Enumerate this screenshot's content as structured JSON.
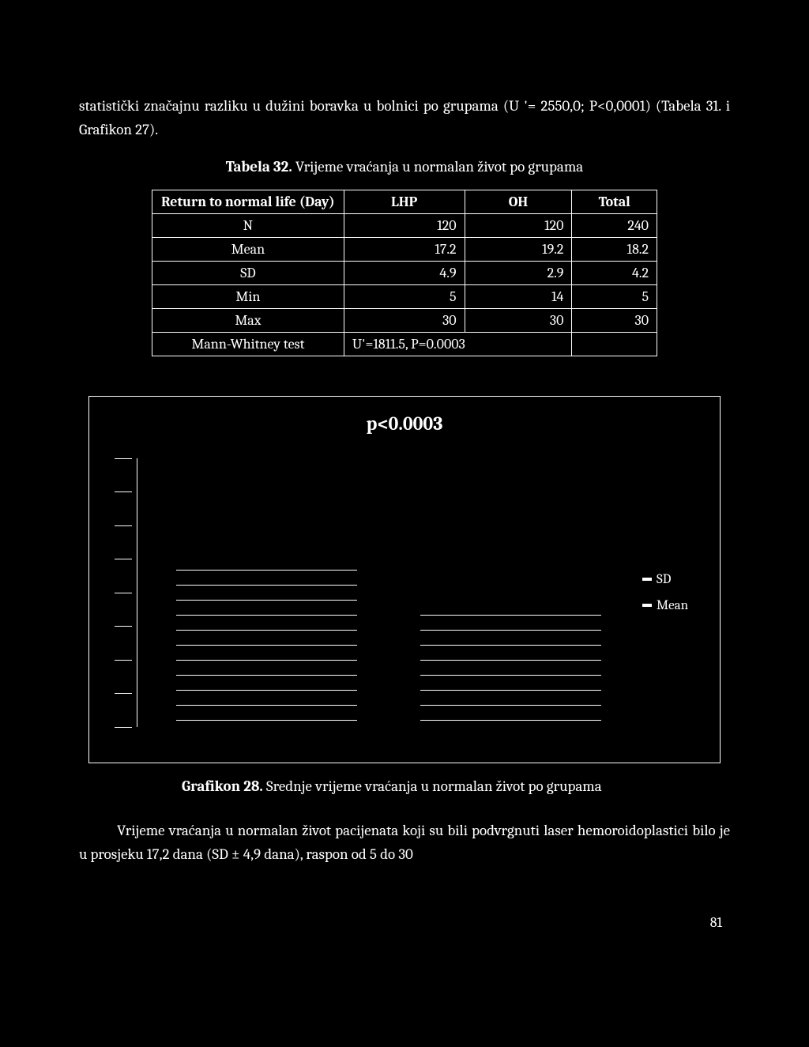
{
  "intro_text": "statistički značajnu razliku u dužini boravka u bolnici po grupama (U '= 2550,0; P<0,0001) (Tabela 31. i Grafikon 27).",
  "table_caption_bold": "Tabela 32.",
  "table_caption_rest": " Vrijeme vraćanja u normalan život po grupama",
  "table": {
    "header_label": "Return to normal life (Day)",
    "columns": [
      "LHP",
      "OH",
      "Total"
    ],
    "rows": [
      {
        "label": "N",
        "vals": [
          "120",
          "120",
          "240"
        ]
      },
      {
        "label": "Mean",
        "vals": [
          "17.2",
          "19.2",
          "18.2"
        ]
      },
      {
        "label": "SD",
        "vals": [
          "4.9",
          "2.9",
          "4.2"
        ]
      },
      {
        "label": "Min",
        "vals": [
          "5",
          "14",
          "5"
        ]
      },
      {
        "label": "Max",
        "vals": [
          "30",
          "30",
          "30"
        ]
      }
    ],
    "test_label": "Mann-Whitney test",
    "test_value": "U'=1811.5, P=0.0003"
  },
  "chart": {
    "title": "p<0.0003",
    "n_groups": 2,
    "n_yticks": 9,
    "group1_segments": 11,
    "group2_segments": 8,
    "legend": [
      "SD",
      "Mean"
    ],
    "tick_color": "#ffffff",
    "bar_color": "#ffffff",
    "background_color": "#000000",
    "frame_color": "#ffffff"
  },
  "chart_caption_bold": "Grafikon 28.",
  "chart_caption_rest": " Srednje vrijeme vraćanja u normalan život po grupama",
  "closing_text": "Vrijeme vraćanja u normalan život pacijenata koji su bili podvrgnuti laser hemoroidoplastici bilo je u prosjeku 17,2 dana (SD ± 4,9 dana), raspon od 5 do 30",
  "page_number": "81"
}
